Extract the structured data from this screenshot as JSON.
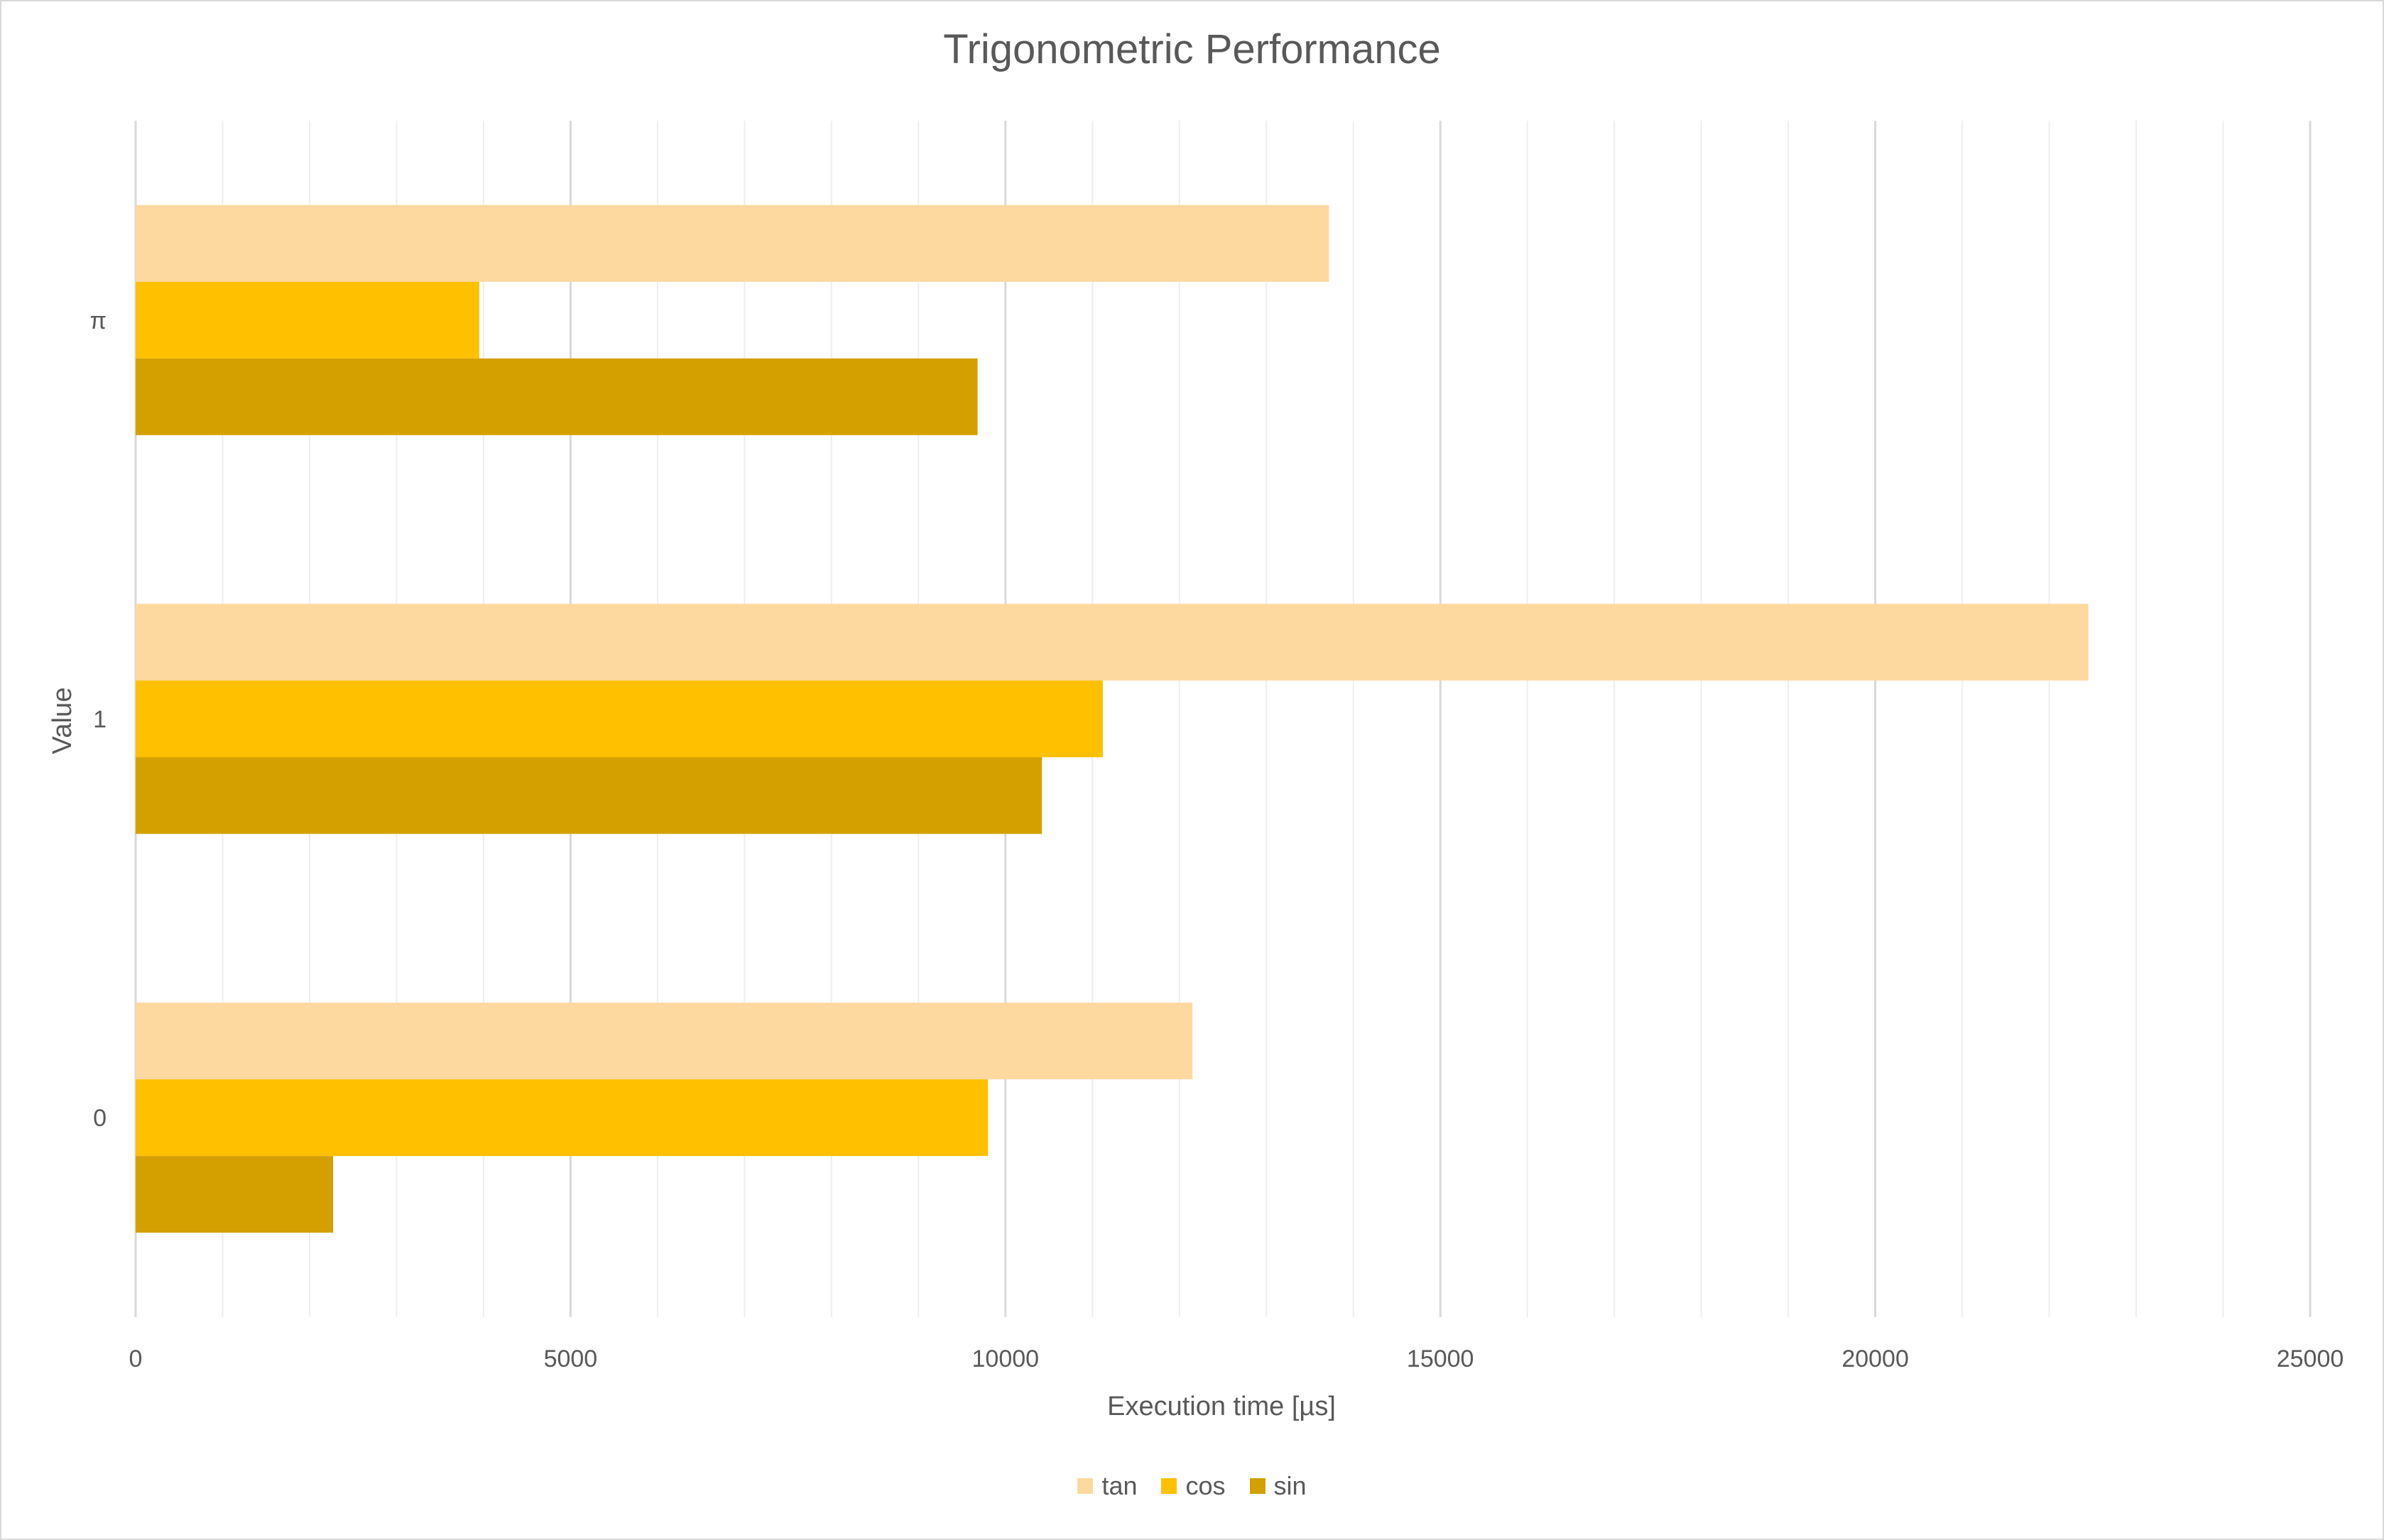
{
  "chart_data": {
    "type": "bar",
    "orientation": "horizontal",
    "title": "Trigonometric Performance",
    "xlabel": "Execution time [µs]",
    "ylabel": "Value",
    "categories": [
      "0",
      "1",
      "π"
    ],
    "series": [
      {
        "name": "tan",
        "color": "#FDD9A0",
        "values": [
          12150,
          22450,
          13720
        ]
      },
      {
        "name": "cos",
        "color": "#FFC000",
        "values": [
          9800,
          11120,
          3950
        ]
      },
      {
        "name": "sin",
        "color": "#D4A000",
        "values": [
          2270,
          10420,
          9680
        ]
      }
    ],
    "xlim": [
      0,
      25000
    ],
    "xticks": [
      0,
      5000,
      10000,
      15000,
      20000,
      25000
    ],
    "xtick_labels": [
      "0",
      "5000",
      "10000",
      "15000",
      "20000",
      "25000"
    ],
    "grid": {
      "major": true,
      "minor": true
    },
    "legend_position": "bottom"
  }
}
